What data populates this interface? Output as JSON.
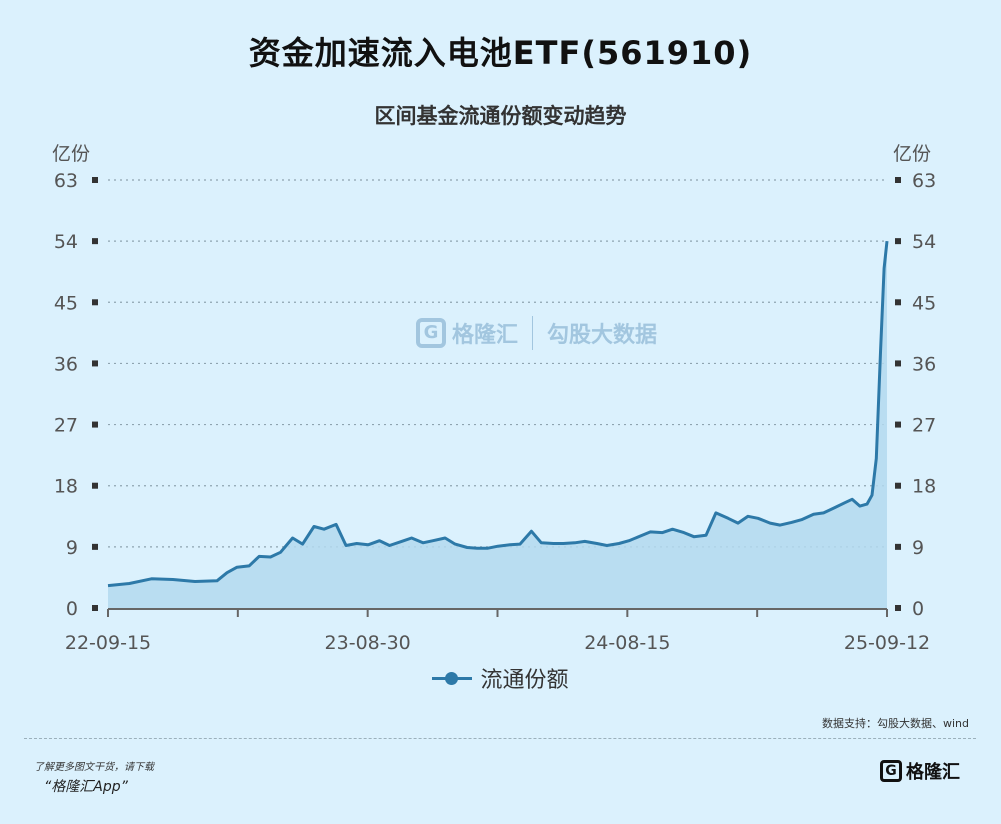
{
  "title": "资金加速流入电池ETF(561910)",
  "subtitle": "区间基金流通份额变动趋势",
  "colors": {
    "background": "#dbf1fd",
    "line": "#2d79a8",
    "area": "#b3d9ee",
    "grid": "#8ea4b0"
  },
  "legend": {
    "label": "流通份额",
    "icon": "line-dot-icon"
  },
  "source": "数据支持：勾股大数据、wind",
  "footer": {
    "note": "了解更多图文干货，请下载",
    "app": "“格隆汇App”"
  },
  "watermark": {
    "brand": "格隆汇",
    "gogu": "勾股大数据"
  },
  "corner_logo": {
    "brand": "格隆汇"
  },
  "chart_data": {
    "type": "area",
    "y_unit_left": "亿份",
    "y_unit_right": "亿份",
    "ylim": [
      0,
      63
    ],
    "yticks": [
      0,
      9,
      18,
      27,
      36,
      45,
      54,
      63
    ],
    "x_tick_labels": [
      "22-09-15",
      "23-08-30",
      "24-08-15",
      "25-09-12"
    ],
    "x_range": [
      "2022-09-15",
      "2025-09-12"
    ],
    "grid": true,
    "legend_position": "bottom",
    "series": [
      {
        "name": "流通份额",
        "x": [
          "2022-09-15",
          "2022-10-15",
          "2022-11-15",
          "2022-12-15",
          "2023-01-15",
          "2023-02-15",
          "2023-03-01",
          "2023-03-15",
          "2023-04-01",
          "2023-04-15",
          "2023-05-01",
          "2023-05-15",
          "2023-06-01",
          "2023-06-15",
          "2023-07-01",
          "2023-07-15",
          "2023-08-01",
          "2023-08-15",
          "2023-08-30",
          "2023-09-15",
          "2023-10-01",
          "2023-10-15",
          "2023-11-01",
          "2023-11-15",
          "2023-12-01",
          "2023-12-15",
          "2024-01-01",
          "2024-01-15",
          "2024-02-01",
          "2024-02-15",
          "2024-03-01",
          "2024-03-15",
          "2024-04-01",
          "2024-04-15",
          "2024-05-01",
          "2024-05-15",
          "2024-06-01",
          "2024-06-15",
          "2024-07-01",
          "2024-07-15",
          "2024-08-01",
          "2024-08-15",
          "2024-09-01",
          "2024-09-15",
          "2024-10-01",
          "2024-10-15",
          "2024-11-01",
          "2024-11-15",
          "2024-12-01",
          "2024-12-15",
          "2025-01-01",
          "2025-01-15",
          "2025-02-01",
          "2025-02-15",
          "2025-03-01",
          "2025-03-15",
          "2025-04-01",
          "2025-04-15",
          "2025-05-01",
          "2025-05-15",
          "2025-06-01",
          "2025-06-15",
          "2025-07-01",
          "2025-07-15",
          "2025-07-25",
          "2025-08-05",
          "2025-08-15",
          "2025-08-22",
          "2025-08-28",
          "2025-09-03",
          "2025-09-08",
          "2025-09-12"
        ],
        "y": [
          3.3,
          3.6,
          4.3,
          4.2,
          3.9,
          4.0,
          5.2,
          6.0,
          6.2,
          7.6,
          7.5,
          8.2,
          10.3,
          9.4,
          12.0,
          11.6,
          12.3,
          9.2,
          9.5,
          9.3,
          9.9,
          9.2,
          9.8,
          10.3,
          9.6,
          9.9,
          10.3,
          9.4,
          8.9,
          8.8,
          8.8,
          9.1,
          9.3,
          9.4,
          11.3,
          9.6,
          9.5,
          9.5,
          9.6,
          9.8,
          9.5,
          9.2,
          9.5,
          9.9,
          10.6,
          11.2,
          11.1,
          11.6,
          11.1,
          10.5,
          10.7,
          14.0,
          13.2,
          12.5,
          13.5,
          13.2,
          12.5,
          12.2,
          12.6,
          13.0,
          13.8,
          14.0,
          14.8,
          15.5,
          16.0,
          15.0,
          15.3,
          16.6,
          22.0,
          38.0,
          50.0,
          54.0
        ]
      }
    ]
  }
}
